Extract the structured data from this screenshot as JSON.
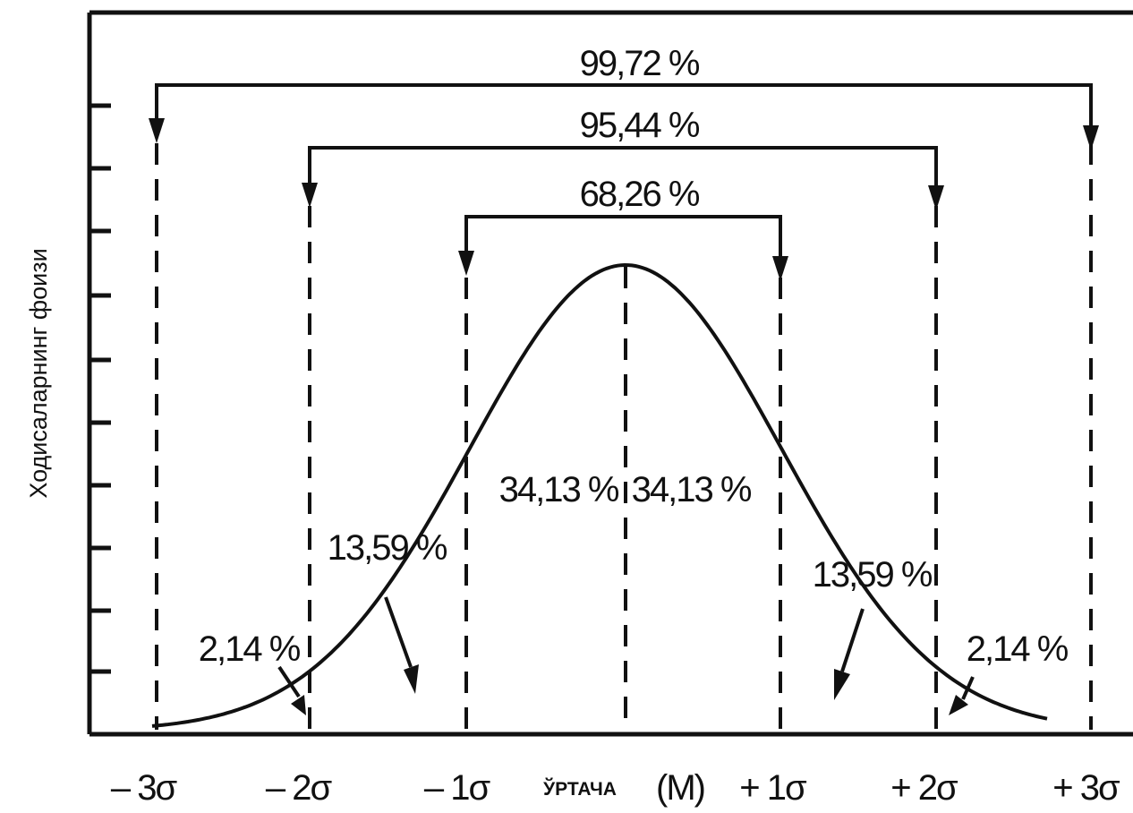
{
  "diagram": {
    "y_axis_label": "Ходисаларнинг фоизи",
    "x_axis": {
      "ticks": [
        "– 3σ",
        "– 2σ",
        "– 1σ",
        "+ 1σ",
        "+ 2σ",
        "+ 3σ"
      ],
      "mean_word": "ЎРТАЧА",
      "mean_symbol": "(M)"
    },
    "brackets": [
      {
        "range": "±1σ",
        "label": "68,26 %"
      },
      {
        "range": "±2σ",
        "label": "95,44 %"
      },
      {
        "range": "±3σ",
        "label": "99,72 %"
      }
    ],
    "area_labels": {
      "left_center": "34,13 %",
      "right_center": "34,13 %",
      "left_middle": "13,59 %",
      "right_middle": "13,59 %",
      "left_tail": "2,14 %",
      "right_tail": "2,14 %"
    }
  }
}
